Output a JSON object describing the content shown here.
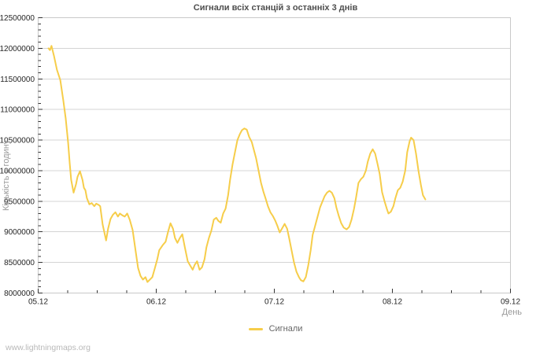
{
  "page": {
    "watermark": "www.lightningmaps.org"
  },
  "chart_data": {
    "type": "line",
    "title": "Сигнали всіх станцій з останніх 3 днів",
    "xlabel": "День",
    "ylabel": "Кількість в годину",
    "x_tick_labels": [
      "05.12",
      "06.12",
      "07.12",
      "08.12",
      "09.12"
    ],
    "x_range_hours": [
      0,
      96
    ],
    "x_major_step_hours": 24,
    "x_minor_step_hours": 6,
    "ylim": [
      8000000,
      12500000
    ],
    "y_tick_step": 500000,
    "y_minor_step": 100000,
    "grid": "horizontal-only",
    "legend_position": "bottom-center",
    "colors": {
      "series_line": "#f6cd4a",
      "grid_line": "#d4d4d4",
      "frame": "#c9c9c9",
      "tick": "#333333",
      "tick_label": "#262626",
      "title": "#4d4d4d",
      "axis_title": "#9a9a9a",
      "legend_label": "#666666",
      "watermark": "#b9b9b9",
      "background": "#ffffff"
    },
    "series": [
      {
        "name": "Сигнали",
        "color": "#f6cd4a",
        "points_hours_value": [
          [
            2.1,
            12000000
          ],
          [
            2.4,
            11970000
          ],
          [
            2.7,
            12040000
          ],
          [
            3.2,
            11880000
          ],
          [
            3.8,
            11650000
          ],
          [
            4.5,
            11480000
          ],
          [
            5.1,
            11150000
          ],
          [
            5.6,
            10850000
          ],
          [
            6.1,
            10450000
          ],
          [
            6.4,
            10130000
          ],
          [
            6.7,
            9850000
          ],
          [
            7.2,
            9640000
          ],
          [
            7.7,
            9780000
          ],
          [
            8.0,
            9900000
          ],
          [
            8.5,
            9990000
          ],
          [
            9.0,
            9850000
          ],
          [
            9.3,
            9720000
          ],
          [
            9.6,
            9680000
          ],
          [
            9.9,
            9550000
          ],
          [
            10.4,
            9450000
          ],
          [
            10.9,
            9470000
          ],
          [
            11.4,
            9420000
          ],
          [
            11.8,
            9460000
          ],
          [
            12.3,
            9440000
          ],
          [
            12.6,
            9420000
          ],
          [
            13.1,
            9120000
          ],
          [
            13.8,
            8860000
          ],
          [
            14.2,
            9050000
          ],
          [
            14.7,
            9210000
          ],
          [
            15.2,
            9280000
          ],
          [
            15.7,
            9320000
          ],
          [
            16.2,
            9250000
          ],
          [
            16.6,
            9300000
          ],
          [
            17.1,
            9270000
          ],
          [
            17.6,
            9250000
          ],
          [
            18.1,
            9300000
          ],
          [
            18.6,
            9200000
          ],
          [
            19.2,
            9030000
          ],
          [
            19.7,
            8750000
          ],
          [
            20.3,
            8410000
          ],
          [
            20.8,
            8280000
          ],
          [
            21.3,
            8220000
          ],
          [
            21.8,
            8260000
          ],
          [
            22.2,
            8180000
          ],
          [
            22.7,
            8220000
          ],
          [
            23.2,
            8260000
          ],
          [
            23.7,
            8400000
          ],
          [
            24.2,
            8550000
          ],
          [
            24.6,
            8700000
          ],
          [
            25.3,
            8780000
          ],
          [
            25.9,
            8840000
          ],
          [
            26.4,
            9000000
          ],
          [
            26.9,
            9140000
          ],
          [
            27.4,
            9050000
          ],
          [
            27.8,
            8900000
          ],
          [
            28.3,
            8820000
          ],
          [
            28.8,
            8900000
          ],
          [
            29.3,
            8960000
          ],
          [
            29.8,
            8750000
          ],
          [
            30.4,
            8520000
          ],
          [
            30.9,
            8450000
          ],
          [
            31.4,
            8380000
          ],
          [
            31.8,
            8460000
          ],
          [
            32.3,
            8520000
          ],
          [
            32.8,
            8380000
          ],
          [
            33.3,
            8420000
          ],
          [
            33.8,
            8550000
          ],
          [
            34.2,
            8750000
          ],
          [
            34.7,
            8900000
          ],
          [
            35.2,
            9020000
          ],
          [
            35.7,
            9200000
          ],
          [
            36.2,
            9230000
          ],
          [
            36.6,
            9180000
          ],
          [
            37.1,
            9150000
          ],
          [
            37.6,
            9300000
          ],
          [
            38.1,
            9380000
          ],
          [
            38.6,
            9600000
          ],
          [
            39.0,
            9850000
          ],
          [
            39.5,
            10100000
          ],
          [
            40.0,
            10300000
          ],
          [
            40.5,
            10500000
          ],
          [
            41.0,
            10600000
          ],
          [
            41.4,
            10660000
          ],
          [
            41.9,
            10690000
          ],
          [
            42.4,
            10670000
          ],
          [
            42.9,
            10550000
          ],
          [
            43.4,
            10470000
          ],
          [
            43.8,
            10350000
          ],
          [
            44.3,
            10200000
          ],
          [
            44.8,
            10000000
          ],
          [
            45.3,
            9800000
          ],
          [
            45.8,
            9650000
          ],
          [
            46.2,
            9550000
          ],
          [
            46.7,
            9420000
          ],
          [
            47.2,
            9320000
          ],
          [
            47.7,
            9260000
          ],
          [
            48.2,
            9180000
          ],
          [
            48.6,
            9100000
          ],
          [
            49.1,
            8990000
          ],
          [
            49.6,
            9060000
          ],
          [
            50.1,
            9130000
          ],
          [
            50.6,
            9050000
          ],
          [
            51.0,
            8900000
          ],
          [
            51.5,
            8700000
          ],
          [
            52.0,
            8500000
          ],
          [
            52.5,
            8350000
          ],
          [
            53.0,
            8260000
          ],
          [
            53.4,
            8210000
          ],
          [
            53.9,
            8190000
          ],
          [
            54.4,
            8260000
          ],
          [
            54.9,
            8450000
          ],
          [
            55.4,
            8700000
          ],
          [
            55.8,
            8950000
          ],
          [
            56.3,
            9100000
          ],
          [
            56.8,
            9250000
          ],
          [
            57.3,
            9400000
          ],
          [
            57.8,
            9500000
          ],
          [
            58.2,
            9580000
          ],
          [
            58.7,
            9640000
          ],
          [
            59.2,
            9670000
          ],
          [
            59.7,
            9640000
          ],
          [
            60.2,
            9550000
          ],
          [
            60.6,
            9400000
          ],
          [
            61.1,
            9260000
          ],
          [
            61.6,
            9140000
          ],
          [
            62.1,
            9070000
          ],
          [
            62.7,
            9040000
          ],
          [
            63.2,
            9080000
          ],
          [
            63.7,
            9200000
          ],
          [
            64.2,
            9380000
          ],
          [
            64.6,
            9550000
          ],
          [
            65.1,
            9800000
          ],
          [
            65.6,
            9860000
          ],
          [
            66.1,
            9900000
          ],
          [
            66.6,
            10000000
          ],
          [
            67.0,
            10150000
          ],
          [
            67.5,
            10280000
          ],
          [
            68.0,
            10350000
          ],
          [
            68.5,
            10280000
          ],
          [
            69.0,
            10100000
          ],
          [
            69.4,
            9950000
          ],
          [
            69.9,
            9650000
          ],
          [
            70.4,
            9500000
          ],
          [
            70.9,
            9370000
          ],
          [
            71.2,
            9300000
          ],
          [
            71.7,
            9330000
          ],
          [
            72.2,
            9420000
          ],
          [
            72.6,
            9550000
          ],
          [
            73.1,
            9680000
          ],
          [
            73.6,
            9720000
          ],
          [
            74.1,
            9820000
          ],
          [
            74.6,
            10000000
          ],
          [
            75.0,
            10300000
          ],
          [
            75.5,
            10480000
          ],
          [
            75.8,
            10540000
          ],
          [
            76.3,
            10500000
          ],
          [
            76.8,
            10280000
          ],
          [
            77.3,
            10000000
          ],
          [
            77.8,
            9760000
          ],
          [
            78.2,
            9600000
          ],
          [
            78.7,
            9530000
          ]
        ]
      }
    ]
  }
}
